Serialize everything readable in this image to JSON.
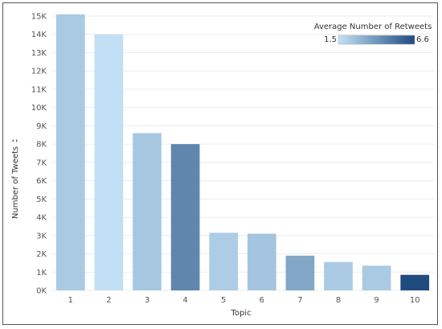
{
  "chart_data": {
    "type": "bar",
    "xlabel": "Topic",
    "ylabel": "Number of Tweets",
    "ylabel_sort_icon": "sort-descending-icon",
    "categories": [
      "1",
      "2",
      "3",
      "4",
      "5",
      "6",
      "7",
      "8",
      "9",
      "10"
    ],
    "values": [
      15100,
      14000,
      8600,
      8000,
      3150,
      3100,
      1900,
      1550,
      1350,
      850
    ],
    "color_values": [
      2.3,
      1.6,
      2.4,
      4.6,
      2.2,
      2.5,
      3.5,
      2.3,
      2.3,
      6.6
    ],
    "ylim": [
      0,
      15000
    ],
    "yticks": [
      0,
      1000,
      2000,
      3000,
      4000,
      5000,
      6000,
      7000,
      8000,
      9000,
      10000,
      11000,
      12000,
      13000,
      14000,
      15000
    ],
    "ytick_labels": [
      "0K",
      "1K",
      "2K",
      "3K",
      "4K",
      "5K",
      "6K",
      "7K",
      "8K",
      "9K",
      "10K",
      "11K",
      "12K",
      "13K",
      "14K",
      "15K"
    ],
    "grid": true,
    "legend": {
      "title": "Average Number of Retweets",
      "min_label": "1.5",
      "max_label": "6.6",
      "min": 1.5,
      "max": 6.6,
      "color_low": "#c4e2f6",
      "color_high": "#1f4b7f",
      "placement": "top-right"
    }
  }
}
